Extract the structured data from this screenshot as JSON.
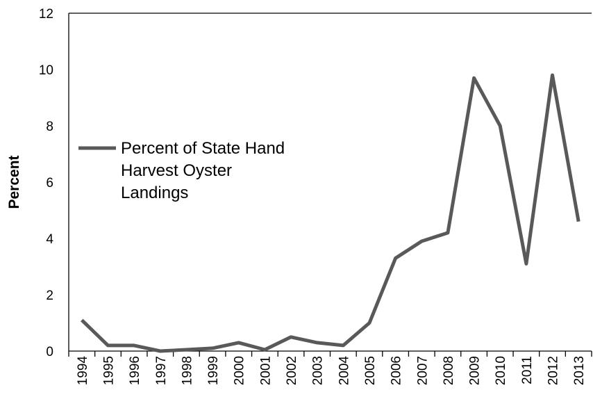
{
  "chart_data": {
    "type": "line",
    "title": "",
    "xlabel": "",
    "ylabel": "Percent",
    "ylim": [
      0,
      12
    ],
    "yticks": [
      "0",
      "2",
      "4",
      "6",
      "8",
      "10",
      "12"
    ],
    "grid": false,
    "legend_position": "left",
    "categories": [
      "1994",
      "1995",
      "1996",
      "1997",
      "1998",
      "1999",
      "2000",
      "2001",
      "2002",
      "2003",
      "2004",
      "2005",
      "2006",
      "2007",
      "2008",
      "2009",
      "2010",
      "2011",
      "2012",
      "2013"
    ],
    "series": [
      {
        "name": "Percent of State Hand Harvest Oyster Landings",
        "legend_lines": [
          "Percent of State Hand",
          "Harvest Oyster",
          "Landings"
        ],
        "color": "#595959",
        "values": [
          1.1,
          0.2,
          0.2,
          0.0,
          0.05,
          0.1,
          0.3,
          0.05,
          0.5,
          0.3,
          0.2,
          1.0,
          3.3,
          3.9,
          4.2,
          9.7,
          8.0,
          3.1,
          9.8,
          4.6
        ]
      }
    ]
  }
}
